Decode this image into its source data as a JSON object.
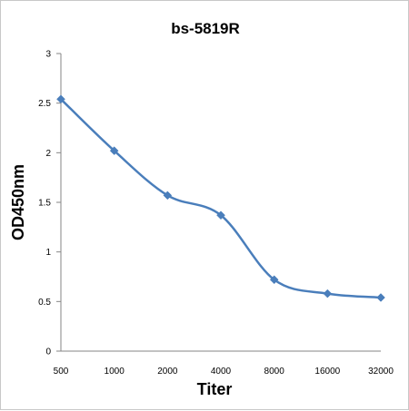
{
  "chart_data": {
    "type": "line",
    "title": "bs-5819R",
    "xlabel": "Titer",
    "ylabel": "OD450nm",
    "categories": [
      "500",
      "1000",
      "2000",
      "4000",
      "8000",
      "16000",
      "32000"
    ],
    "series": [
      {
        "values": [
          2.54,
          2.02,
          1.57,
          1.37,
          0.72,
          0.58,
          0.54
        ]
      }
    ],
    "ylim": [
      0,
      3
    ],
    "yticks": [
      "0",
      "0.5",
      "1",
      "1.5",
      "2",
      "2.5",
      "3"
    ],
    "grid": false,
    "legend": "none",
    "line_color": "#4a7ebb",
    "axis_color": "#868686"
  }
}
